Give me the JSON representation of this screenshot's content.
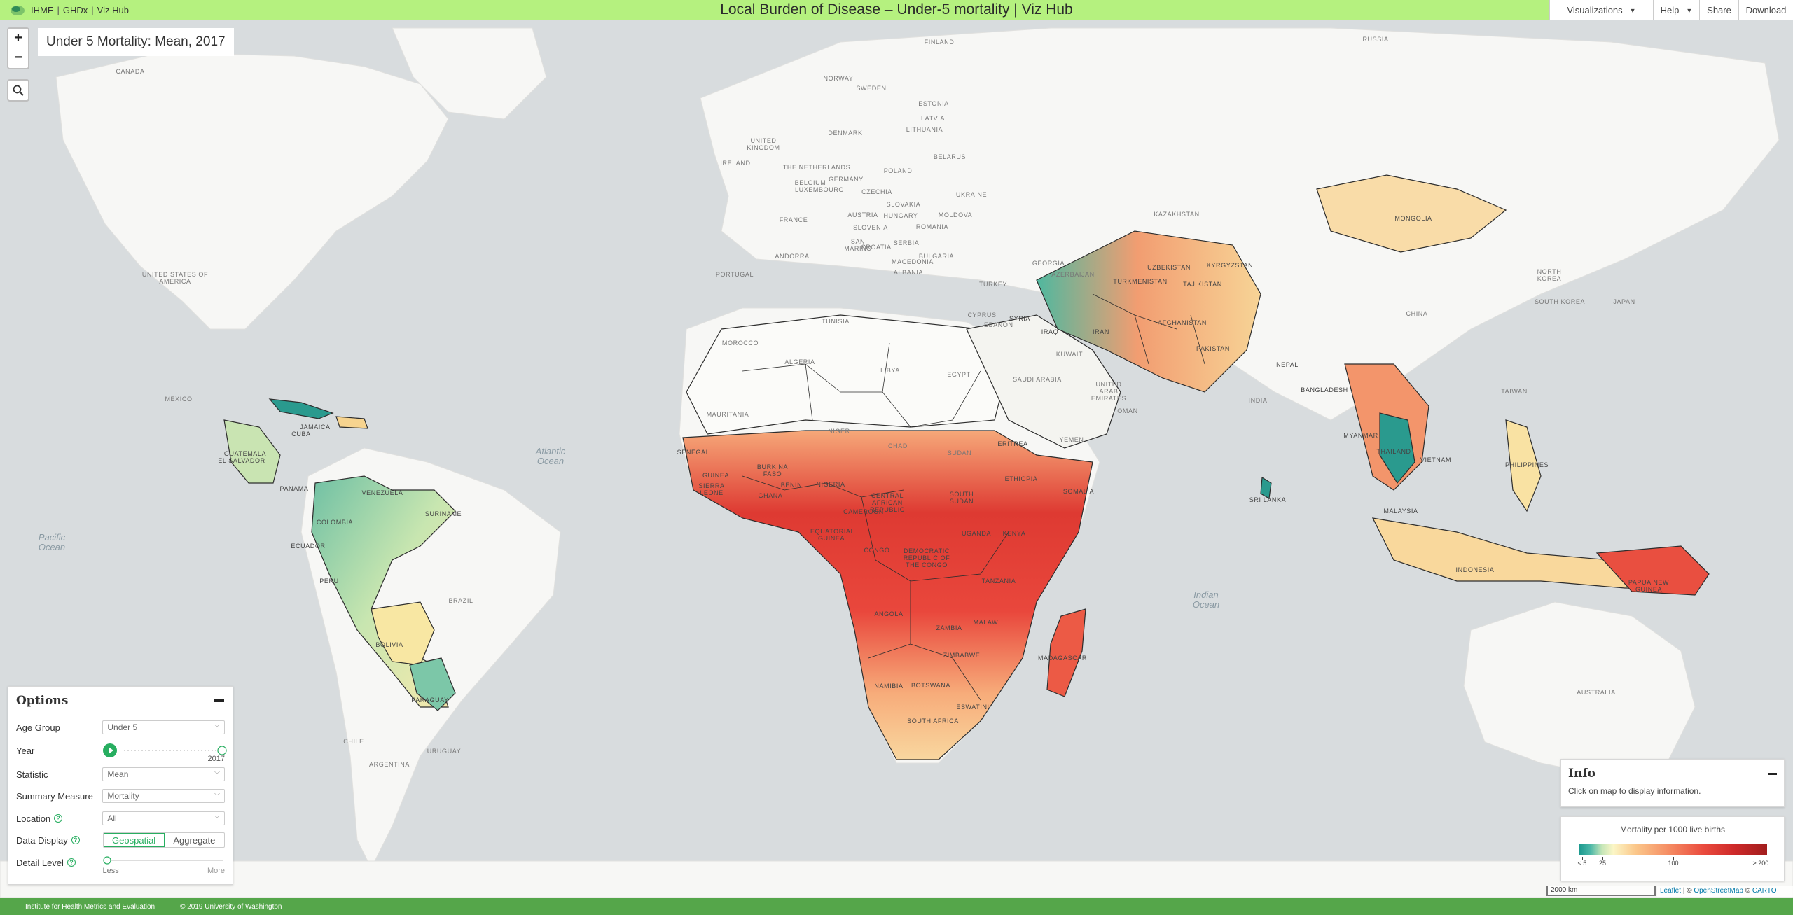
{
  "header": {
    "brand_links": [
      "IHME",
      "GHDx",
      "Viz Hub"
    ],
    "title": "Local Burden of Disease – Under-5 mortality | Viz Hub",
    "menu": {
      "visualizations": "Visualizations",
      "help": "Help",
      "share": "Share",
      "download": "Download"
    }
  },
  "map": {
    "title": "Under 5 Mortality: Mean, 2017",
    "zoom_in": "+",
    "zoom_out": "−",
    "colors": {
      "ocean": "#d8dcde",
      "land": "#f7f7f5",
      "border": "#333333"
    },
    "countries": [
      "Canada",
      "United States of America",
      "Mexico",
      "Cuba",
      "Jamaica",
      "Guatemala",
      "El Salvador",
      "Panama",
      "Venezuela",
      "Colombia",
      "Suriname",
      "Ecuador",
      "Peru",
      "Brazil",
      "Bolivia",
      "Paraguay",
      "Chile",
      "Argentina",
      "Uruguay",
      "Finland",
      "Norway",
      "Sweden",
      "Estonia",
      "Latvia",
      "Lithuania",
      "United Kingdom",
      "Denmark",
      "Ireland",
      "The Netherlands",
      "Belarus",
      "Belgium",
      "Germany",
      "Poland",
      "Luxembourg",
      "Czechia",
      "Ukraine",
      "Slovakia",
      "France",
      "Austria",
      "Hungary",
      "Moldova",
      "Slovenia",
      "Romania",
      "San Marino",
      "Serbia",
      "Croatia",
      "Bulgaria",
      "Andorra",
      "Portugal",
      "Macedonia",
      "Albania",
      "Georgia",
      "Turkey",
      "Azerbaijan",
      "Cyprus",
      "Lebanon",
      "Syria",
      "Iraq",
      "Iran",
      "Kuwait",
      "Saudi Arabia",
      "United Arab Emirates",
      "Oman",
      "Yemen",
      "Russia",
      "Kazakhstan",
      "Uzbekistan",
      "Kyrgyzstan",
      "Tajikistan",
      "Turkmenistan",
      "Afghanistan",
      "Pakistan",
      "Mongolia",
      "China",
      "North Korea",
      "South Korea",
      "Japan",
      "Taiwan",
      "Nepal",
      "India",
      "Bangladesh",
      "Myanmar",
      "Thailand",
      "Vietnam",
      "Philippines",
      "Sri Lanka",
      "Malaysia",
      "Indonesia",
      "Papua New Guinea",
      "Australia",
      "Tunisia",
      "Morocco",
      "Algeria",
      "Libya",
      "Egypt",
      "Mauritania",
      "Niger",
      "Chad",
      "Sudan",
      "Eritrea",
      "Senegal",
      "Guinea",
      "Sierra Leone",
      "Burkina Faso",
      "Ghana",
      "Benin",
      "Nigeria",
      "Central African Republic",
      "South Sudan",
      "Ethiopia",
      "Somalia",
      "Cameroon",
      "Equatorial Guinea",
      "Uganda",
      "Kenya",
      "Congo",
      "Democratic Republic of the Congo",
      "Tanzania",
      "Angola",
      "Malawi",
      "Zambia",
      "Zimbabwe",
      "Madagascar",
      "Namibia",
      "Botswana",
      "Eswatini",
      "South Africa"
    ],
    "oceans": [
      "Atlantic Ocean",
      "Pacific Ocean",
      "Indian Ocean"
    ]
  },
  "options": {
    "title": "Options",
    "age_group": {
      "label": "Age Group",
      "value": "Under 5"
    },
    "year": {
      "label": "Year",
      "value": "2017",
      "fraction": 1.0
    },
    "statistic": {
      "label": "Statistic",
      "value": "Mean"
    },
    "summary_measure": {
      "label": "Summary Measure",
      "value": "Mortality"
    },
    "location": {
      "label": "Location",
      "value": "All"
    },
    "data_display": {
      "label": "Data Display",
      "options": [
        "Geospatial",
        "Aggregate"
      ],
      "selected": "Geospatial"
    },
    "detail_level": {
      "label": "Detail Level",
      "min_label": "Less",
      "max_label": "More",
      "fraction": 0.0
    }
  },
  "info": {
    "title": "Info",
    "text": "Click on map to display information."
  },
  "legend": {
    "title": "Mortality per 1000 live births",
    "ticks": [
      "≤ 5",
      "25",
      "100",
      "≥ 200"
    ],
    "colors": [
      "#1c9a8f",
      "#fbf6c6",
      "#f58b62",
      "#a11d1d"
    ]
  },
  "scale": {
    "label": "2000 km"
  },
  "attribution": {
    "leaflet": "Leaflet",
    "osm": "OpenStreetMap",
    "carto": "CARTO",
    "prefix": "| ©",
    "mid": "©"
  },
  "footer": {
    "org": "Institute for Health Metrics and Evaluation",
    "copyright": "© 2019 University of Washington"
  }
}
